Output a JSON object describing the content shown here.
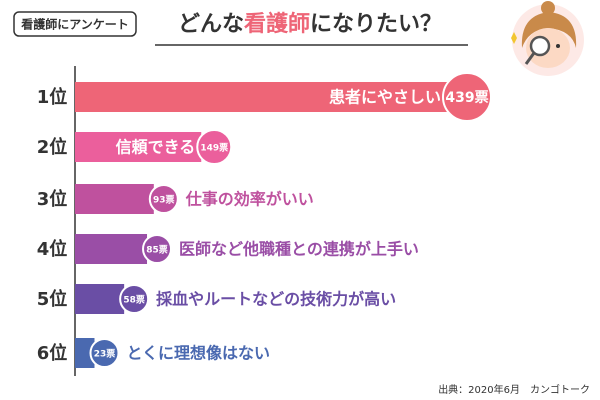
{
  "chart_data": {
    "type": "bar",
    "tag": "看護師にアンケート",
    "title": "どんな看護師になりたい？",
    "title_highlight": "看護師",
    "ranks": [
      "1位",
      "2位",
      "3位",
      "4位",
      "5位",
      "6位"
    ],
    "categories": [
      "患者にやさしい",
      "信頼できる",
      "仕事の効率がいい",
      "医師など他職種との連携が上手い",
      "採血やルートなどの技術力が高い",
      "とくに理想像はない"
    ],
    "values": [
      439,
      149,
      93,
      85,
      58,
      23
    ],
    "value_labels": [
      "439票",
      "149票",
      "93票",
      "85票",
      "58票",
      "23票"
    ],
    "colors": [
      "#ee6577",
      "#eb5f9c",
      "#bf519e",
      "#9a4ea6",
      "#6a4ea5",
      "#4a69b0"
    ],
    "source": "出典：2020年6月　カンゴトーク"
  }
}
